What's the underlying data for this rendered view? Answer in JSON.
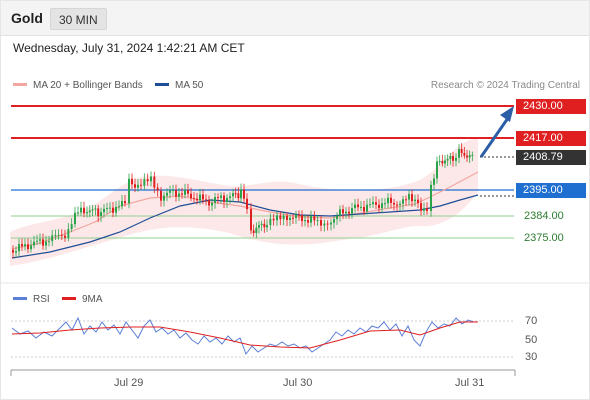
{
  "header": {
    "instrument": "Gold",
    "timeframe": "30 MIN"
  },
  "datetime": "Wednesday, July 31, 2024 1:42:21 AM CET",
  "legend": [
    {
      "label": "MA 20 + Bollinger Bands",
      "color": "#f4a6a0"
    },
    {
      "label": "MA 50",
      "color": "#1f4e96"
    }
  ],
  "copyright": "Research © 2024 Trading Central",
  "levels": {
    "resistance_2": "2430.00",
    "resistance_1": "2417.00",
    "last_price": "2408.79",
    "pivot": "2395.00",
    "support_1": "2384.00",
    "support_2": "2375.00"
  },
  "rsi_legend": [
    {
      "label": "RSI",
      "color": "#5b7fd6"
    },
    {
      "label": "9MA",
      "color": "#e02020"
    }
  ],
  "rsi_levels": [
    "70",
    "50",
    "30"
  ],
  "x_axis": [
    "Jul 29",
    "Jul 30",
    "Jul 31"
  ],
  "colors": {
    "resistance": "#e02020",
    "pivot": "#1f6fd0",
    "support": "#2e8b2e",
    "arrow": "#2b5ea6",
    "last_price_bg": "#333333",
    "bullish": "#2aa34a",
    "bearish": "#e02020"
  }
}
